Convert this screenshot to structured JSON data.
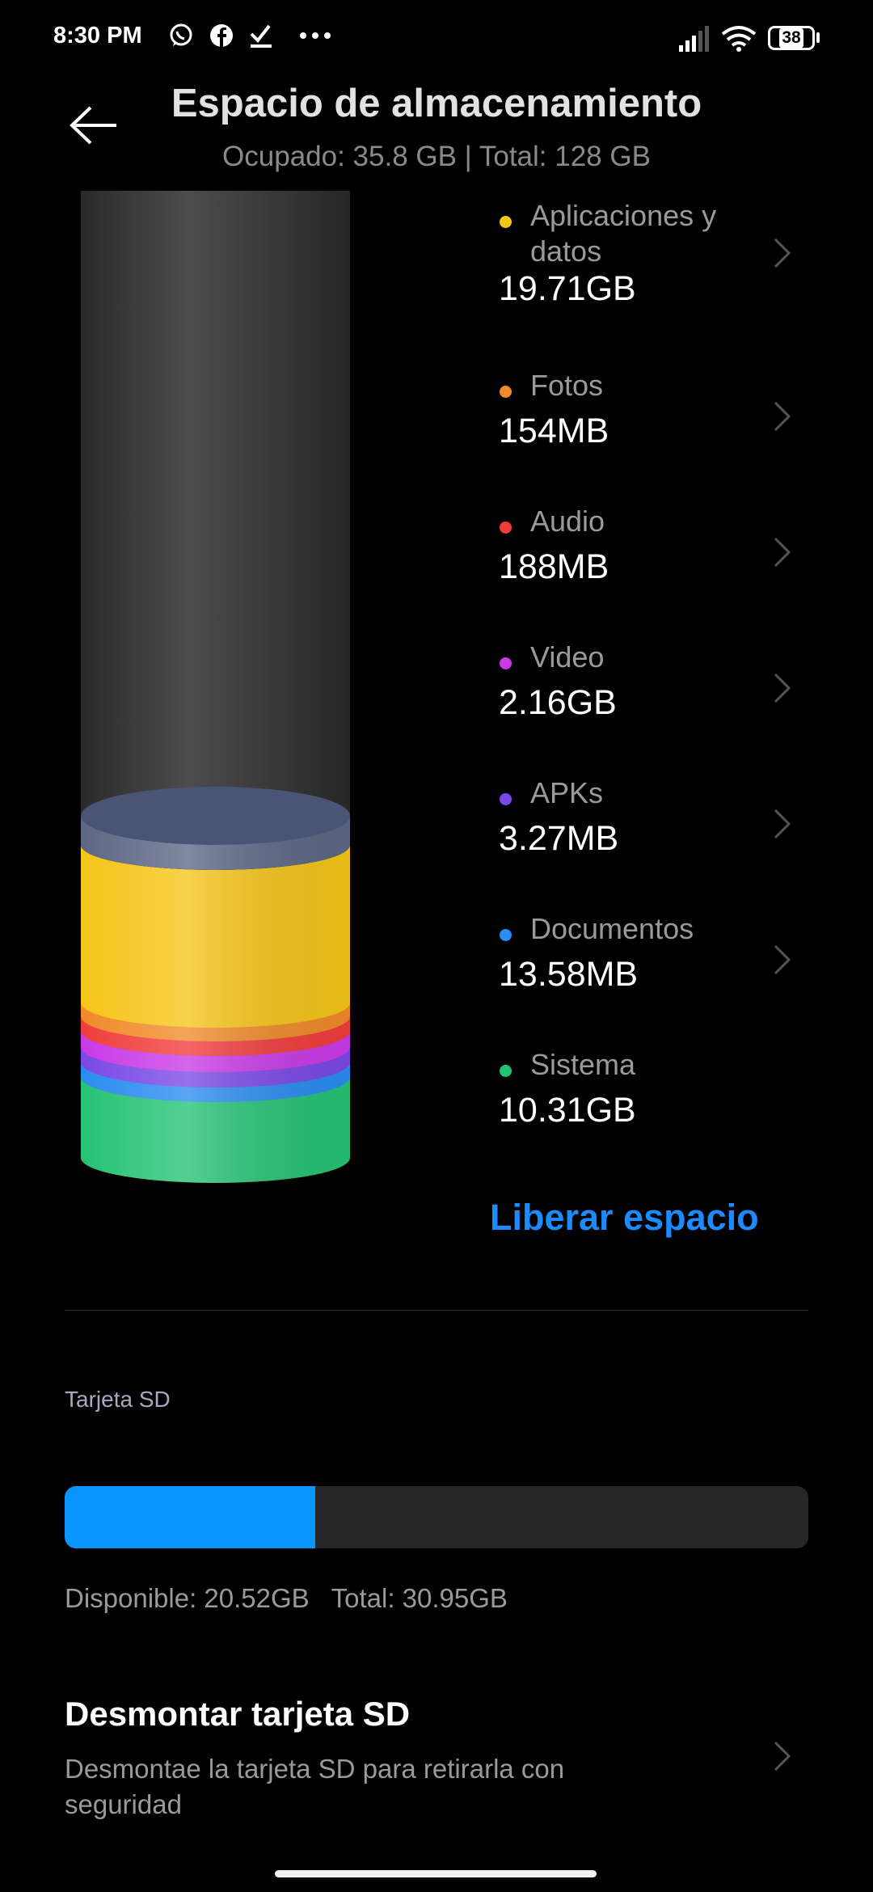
{
  "status_bar": {
    "time": "8:30 PM",
    "battery": "38",
    "icons": [
      "whatsapp-icon",
      "facebook-icon",
      "download-done-icon",
      "more-dots-icon",
      "signal-icon",
      "wifi-icon",
      "battery-icon"
    ]
  },
  "header": {
    "title": "Espacio de almacenamiento",
    "subtitle": "Ocupado: 35.8 GB | Total: 128 GB"
  },
  "categories": [
    {
      "label": "Aplicaciones y datos",
      "value": "19.71GB",
      "color": "#f5c518",
      "chevron": true
    },
    {
      "label": "Fotos",
      "value": "154MB",
      "color": "#f08a2a",
      "chevron": true
    },
    {
      "label": "Audio",
      "value": "188MB",
      "color": "#f03c3c",
      "chevron": true
    },
    {
      "label": "Video",
      "value": "2.16GB",
      "color": "#c93ae6",
      "chevron": true
    },
    {
      "label": "APKs",
      "value": "3.27MB",
      "color": "#7a48e6",
      "chevron": true
    },
    {
      "label": "Documentos",
      "value": "13.58MB",
      "color": "#2a8cf0",
      "chevron": true
    },
    {
      "label": "Sistema",
      "value": "10.31GB",
      "color": "#25c274",
      "chevron": false
    }
  ],
  "free_space_label": "Liberar espacio",
  "sd_card": {
    "section_label": "Tarjeta SD",
    "used_fraction": 0.337,
    "available_text": "Disponible: 20.52GB",
    "total_text": "Total: 30.95GB",
    "unmount_title": "Desmontar tarjeta SD",
    "unmount_subtitle": "Desmontae la tarjeta SD para retirarla con seguridad"
  },
  "accent_color": "#1a8cff"
}
